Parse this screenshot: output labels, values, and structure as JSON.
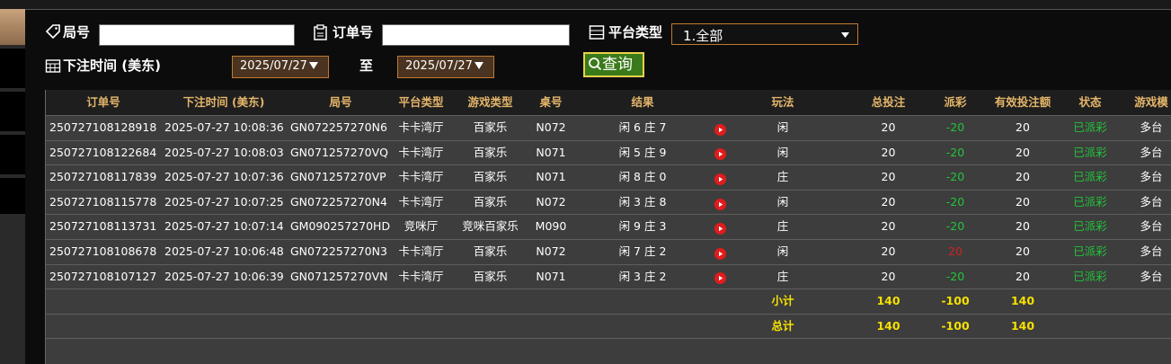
{
  "filters": {
    "round_label": "局号",
    "order_label": "订单号",
    "platform_label": "平台类型",
    "platform_value": "1.全部",
    "time_label": "下注时间 (美东)",
    "date_from": "2025/07/27",
    "to_label": "至",
    "date_to": "2025/07/27",
    "search_button": "查询"
  },
  "table": {
    "header": [
      "订单号",
      "下注时间 (美东)",
      "局号",
      "平台类型",
      "游戏类型",
      "桌号",
      "结果",
      "玩法",
      "总投注",
      "派彩",
      "有效投注额",
      "状态",
      "游戏模"
    ],
    "rows": [
      [
        "250727108128918",
        "2025-07-27 10:08:36",
        "GN072257270N6",
        "卡卡湾厅",
        "百家乐",
        "N072",
        "闲 6 庄 7",
        "闲",
        "20",
        "-20",
        "20",
        "已派彩",
        "多台"
      ],
      [
        "250727108122684",
        "2025-07-27 10:08:03",
        "GN071257270VQ",
        "卡卡湾厅",
        "百家乐",
        "N071",
        "闲 5 庄 9",
        "闲",
        "20",
        "-20",
        "20",
        "已派彩",
        "多台"
      ],
      [
        "250727108117839",
        "2025-07-27 10:07:36",
        "GN071257270VP",
        "卡卡湾厅",
        "百家乐",
        "N071",
        "闲 8 庄 0",
        "庄",
        "20",
        "-20",
        "20",
        "已派彩",
        "多台"
      ],
      [
        "250727108115778",
        "2025-07-27 10:07:25",
        "GN072257270N4",
        "卡卡湾厅",
        "百家乐",
        "N072",
        "闲 3 庄 8",
        "闲",
        "20",
        "-20",
        "20",
        "已派彩",
        "多台"
      ],
      [
        "250727108113731",
        "2025-07-27 10:07:14",
        "GM090257270HD",
        "竞咪厅",
        "竞咪百家乐",
        "M090",
        "闲 9 庄 3",
        "庄",
        "20",
        "-20",
        "20",
        "已派彩",
        "多台"
      ],
      [
        "250727108108678",
        "2025-07-27 10:06:48",
        "GN072257270N3",
        "卡卡湾厅",
        "百家乐",
        "N072",
        "闲 7 庄 2",
        "闲",
        "20",
        "20",
        "20",
        "已派彩",
        "多台"
      ],
      [
        "250727108107127",
        "2025-07-27 10:06:39",
        "GN071257270VN",
        "卡卡湾厅",
        "百家乐",
        "N071",
        "闲 3 庄 2",
        "庄",
        "20",
        "-20",
        "20",
        "已派彩",
        "多台"
      ]
    ],
    "summary": [
      [
        "小计",
        "140",
        "-100",
        "140"
      ],
      [
        "总计",
        "140",
        "-100",
        "140"
      ]
    ]
  }
}
